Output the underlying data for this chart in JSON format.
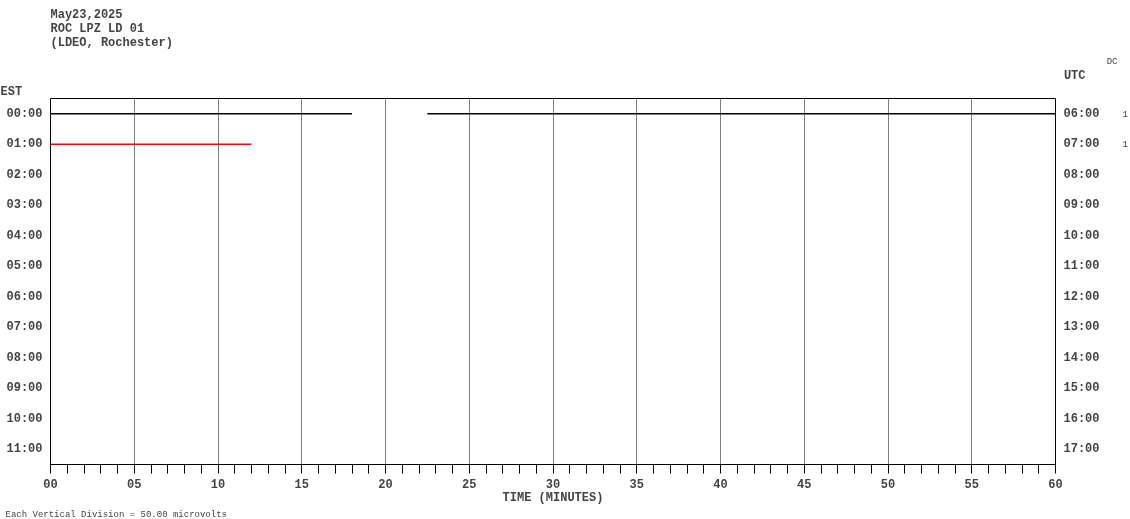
{
  "chart_data": {
    "type": "line",
    "title": "May23,2025\nROC LPZ LD 01\n(LDEO, Rochester)",
    "xlabel": "TIME (MINUTES)",
    "ylabel": "EST",
    "y2label": "UTC",
    "series": [
      {
        "color": "#000000",
        "x": [
          0,
          18,
          20,
          22.5,
          60
        ],
        "values": [
          0,
          0,
          null,
          0,
          0
        ]
      },
      {
        "color": "#ff0000",
        "x": [
          0,
          12
        ],
        "values": [
          1,
          1
        ]
      }
    ],
    "xlim": [
      0,
      60
    ],
    "xticks": [
      {
        "value": 0,
        "label": "00"
      },
      {
        "value": 1,
        "label": null
      },
      {
        "value": 2,
        "label": null
      },
      {
        "value": 3,
        "label": null
      },
      {
        "value": 4,
        "label": null
      },
      {
        "value": 5,
        "label": "05"
      },
      {
        "value": 6,
        "label": null
      },
      {
        "value": 7,
        "label": null
      },
      {
        "value": 8,
        "label": null
      },
      {
        "value": 9,
        "label": null
      },
      10,
      {
        "value": 11,
        "label": null
      },
      {
        "value": 12,
        "label": null
      },
      {
        "value": 13,
        "label": null
      },
      {
        "value": 14,
        "label": null
      },
      15,
      {
        "value": 16,
        "label": null
      },
      {
        "value": 17,
        "label": null
      },
      {
        "value": 18,
        "label": null
      },
      {
        "value": 19,
        "label": null
      },
      20,
      {
        "value": 21,
        "label": null
      },
      {
        "value": 22,
        "label": null
      },
      {
        "value": 23,
        "label": null
      },
      {
        "value": 24,
        "label": null
      },
      25,
      {
        "value": 26,
        "label": null
      },
      {
        "value": 27,
        "label": null
      },
      {
        "value": 28,
        "label": null
      },
      {
        "value": 29,
        "label": null
      },
      30,
      {
        "value": 31,
        "label": null
      },
      {
        "value": 32,
        "label": null
      },
      {
        "value": 33,
        "label": null
      },
      {
        "value": 34,
        "label": null
      },
      35,
      {
        "value": 36,
        "label": null
      },
      {
        "value": 37,
        "label": null
      },
      {
        "value": 38,
        "label": null
      },
      {
        "value": 39,
        "label": null
      },
      40,
      {
        "value": 41,
        "label": null
      },
      {
        "value": 42,
        "label": null
      },
      {
        "value": 43,
        "label": null
      },
      {
        "value": 44,
        "label": null
      },
      45,
      {
        "value": 46,
        "label": null
      },
      {
        "value": 47,
        "label": null
      },
      {
        "value": 48,
        "label": null
      },
      {
        "value": 49,
        "label": null
      },
      50,
      {
        "value": 51,
        "label": null
      },
      {
        "value": 52,
        "label": null
      },
      {
        "value": 53,
        "label": null
      },
      {
        "value": 54,
        "label": null
      },
      55,
      {
        "value": 56,
        "label": null
      },
      {
        "value": 57,
        "label": null
      },
      {
        "value": 58,
        "label": null
      },
      {
        "value": 59,
        "label": null
      },
      60
    ],
    "ylim": [
      11.5,
      -0.5
    ],
    "yticks": [
      {
        "value": 0,
        "label": "00:00"
      },
      {
        "value": 1,
        "label": "01:00"
      },
      {
        "value": 2,
        "label": "02:00"
      },
      {
        "value": 3,
        "label": "03:00"
      },
      {
        "value": 4,
        "label": "04:00"
      },
      {
        "value": 5,
        "label": "05:00"
      },
      {
        "value": 6,
        "label": "06:00"
      },
      {
        "value": 7,
        "label": "07:00"
      },
      {
        "value": 8,
        "label": "08:00"
      },
      {
        "value": 9,
        "label": "09:00"
      },
      {
        "value": 10,
        "label": "10:00"
      },
      {
        "value": 11,
        "label": "11:00"
      }
    ],
    "y2lim": [
      17.5,
      5.5
    ],
    "y2ticks": [
      {
        "value": 6,
        "label": "06:00"
      },
      {
        "value": 7,
        "label": "07:00"
      },
      {
        "value": 8,
        "label": "08:00"
      },
      {
        "value": 9,
        "label": "09:00"
      },
      {
        "value": 10,
        "label": "10:00"
      },
      {
        "value": 11,
        "label": "11:00"
      },
      {
        "value": 12,
        "label": "12:00"
      },
      {
        "value": 13,
        "label": "13:00"
      },
      {
        "value": 14,
        "label": "14:00"
      },
      {
        "value": 15,
        "label": "15:00"
      },
      {
        "value": 16,
        "label": "16:00"
      },
      {
        "value": 17,
        "label": "17:00"
      }
    ],
    "grid": "x",
    "marker": "none",
    "line_style": "solid",
    "annotations": [
      "Each Vertical Division =   50.00 microvolts",
      "DC",
      "1",
      "1"
    ]
  }
}
